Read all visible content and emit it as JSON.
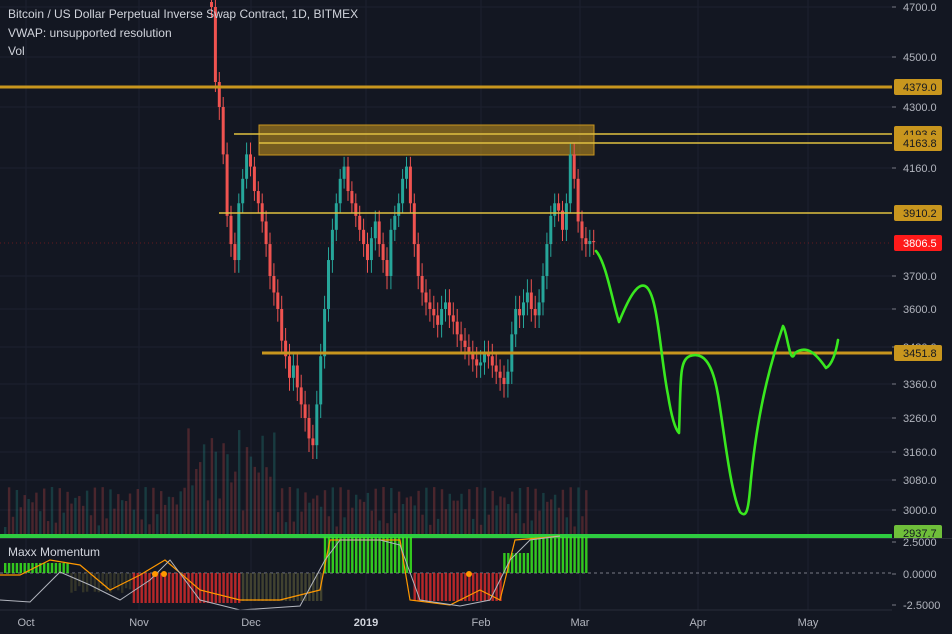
{
  "header": {
    "title": "Bitcoin / US Dollar Perpetual Inverse Swap Contract, 1D, BITMEX",
    "vwap": "VWAP: unsupported resolution",
    "vol": "Vol"
  },
  "indicator": {
    "name": "Maxx Momentum"
  },
  "colors": {
    "background": "#131722",
    "up": "#26a69a",
    "down": "#ef5350",
    "level": "#c8961e",
    "level_thin": "#e0c040",
    "projection": "#39e81f",
    "current": "#ff1a1a",
    "green_band": "#2ecc40"
  },
  "price_axis": {
    "ticks": [
      "4700.0",
      "4500.0",
      "4300.0",
      "4160.0",
      "3700.0",
      "3600.0",
      "3480.0",
      "3360.0",
      "3260.0",
      "3160.0",
      "3080.0",
      "3000.0"
    ],
    "ylim": [
      2940,
      4720
    ]
  },
  "levels": [
    {
      "label": "4379.0",
      "price": 4379.0,
      "style": "thick"
    },
    {
      "label": "4193.6",
      "price": 4193.6,
      "style": "thin"
    },
    {
      "label": "4163.8",
      "price": 4163.8,
      "style": "thin"
    },
    {
      "label": "3910.2",
      "price": 3910.2,
      "style": "thin"
    },
    {
      "label": "3806.5",
      "price": 3806.5,
      "style": "current"
    },
    {
      "label": "3451.8",
      "price": 3451.8,
      "style": "thick"
    },
    {
      "label": "2937.7",
      "price": 2937.7,
      "style": "green"
    }
  ],
  "momentum_axis": {
    "ticks": [
      "2.5000",
      "0.0000",
      "-2.5000"
    ]
  },
  "time_axis": {
    "labels": [
      "Oct",
      "Nov",
      "Dec",
      "2019",
      "Feb",
      "Mar",
      "Apr",
      "May"
    ]
  }
}
